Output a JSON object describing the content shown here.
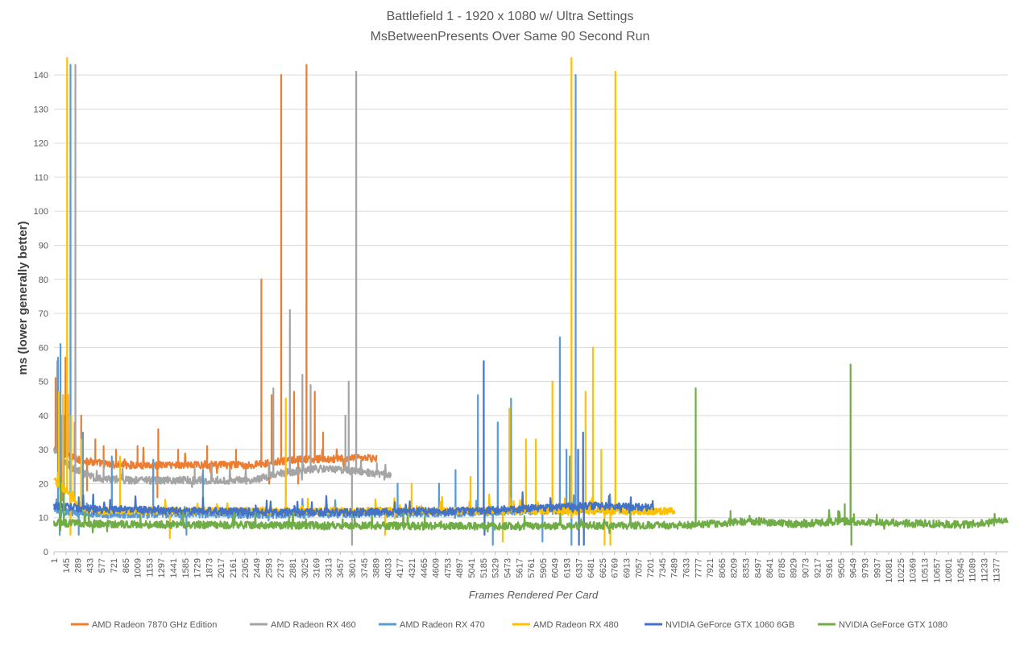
{
  "chart_data": {
    "type": "line",
    "title": "Battlefield 1 - 1920 x 1080 w/ Ultra Settings",
    "subtitle": "MsBetweenPresents Over Same 90 Second Run",
    "xlabel": "Frames Rendered Per Card",
    "ylabel": "ms (lower generally better)",
    "ylim": [
      0,
      145
    ],
    "xlim": [
      1,
      11520
    ],
    "yticks": [
      0,
      10,
      20,
      30,
      40,
      50,
      60,
      70,
      80,
      90,
      100,
      110,
      120,
      130,
      140
    ],
    "xticks": [
      1,
      145,
      289,
      433,
      577,
      721,
      865,
      1009,
      1153,
      1297,
      1441,
      1585,
      1729,
      1873,
      2017,
      2161,
      2305,
      2449,
      2593,
      2737,
      2881,
      3025,
      3169,
      3313,
      3457,
      3601,
      3745,
      3889,
      4033,
      4177,
      4321,
      4465,
      4609,
      4753,
      4897,
      5041,
      5185,
      5329,
      5473,
      5617,
      5761,
      5905,
      6049,
      6193,
      6337,
      6481,
      6625,
      6769,
      6913,
      7057,
      7201,
      7345,
      7489,
      7633,
      7777,
      7921,
      8065,
      8209,
      8353,
      8497,
      8641,
      8785,
      8929,
      9073,
      9217,
      9361,
      9505,
      9649,
      9793,
      9937,
      10081,
      10225,
      10369,
      10513,
      10657,
      10801,
      10945,
      11089,
      11233,
      11377
    ],
    "grid": "horizontal",
    "legend": "bottom",
    "series": [
      {
        "name": "AMD Radeon 7870 GHz Edition",
        "color": "#ED7D31",
        "count": 3900,
        "baseline": [
          [
            1,
            30
          ],
          [
            300,
            27
          ],
          [
            700,
            25.5
          ],
          [
            2400,
            25.5
          ],
          [
            2900,
            27
          ],
          [
            3900,
            27.5
          ]
        ],
        "spikes": [
          [
            20,
            51
          ],
          [
            60,
            45
          ],
          [
            140,
            57
          ],
          [
            170,
            46
          ],
          [
            250,
            38
          ],
          [
            330,
            40
          ],
          [
            500,
            33
          ],
          [
            600,
            31
          ],
          [
            750,
            30
          ],
          [
            1010,
            31
          ],
          [
            1260,
            36
          ],
          [
            1500,
            30
          ],
          [
            1850,
            31
          ],
          [
            2200,
            30
          ],
          [
            2505,
            80
          ],
          [
            2630,
            46
          ],
          [
            2745,
            140
          ],
          [
            2900,
            47
          ],
          [
            3050,
            143
          ],
          [
            3150,
            47
          ],
          [
            3250,
            35
          ]
        ],
        "dips": [
          [
            100,
            15
          ],
          [
            400,
            18
          ],
          [
            1250,
            16
          ],
          [
            2600,
            20
          ],
          [
            2950,
            20
          ]
        ]
      },
      {
        "name": "AMD Radeon RX 460",
        "color": "#A5A5A5",
        "count": 4080,
        "baseline": [
          [
            1,
            30
          ],
          [
            200,
            25
          ],
          [
            500,
            21.5
          ],
          [
            1000,
            21
          ],
          [
            2400,
            21
          ],
          [
            2700,
            23
          ],
          [
            3300,
            24.5
          ],
          [
            4080,
            22.5
          ]
        ],
        "spikes": [
          [
            40,
            56
          ],
          [
            100,
            40
          ],
          [
            260,
            143
          ],
          [
            600,
            27
          ],
          [
            1200,
            26
          ],
          [
            1700,
            25
          ],
          [
            2650,
            48
          ],
          [
            2850,
            71
          ],
          [
            3000,
            52
          ],
          [
            3100,
            49
          ],
          [
            3520,
            40
          ],
          [
            3560,
            50
          ],
          [
            3650,
            141
          ],
          [
            3900,
            26
          ]
        ],
        "dips": [
          [
            250,
            15
          ],
          [
            2800,
            16
          ],
          [
            3600,
            2
          ]
        ]
      },
      {
        "name": "AMD Radeon RX 470",
        "color": "#5B9BD5",
        "count": 6850,
        "baseline": [
          [
            1,
            12
          ],
          [
            600,
            11
          ],
          [
            3000,
            11
          ],
          [
            5000,
            11.5
          ],
          [
            6500,
            12.5
          ],
          [
            6850,
            13
          ]
        ],
        "spikes": [
          [
            50,
            57
          ],
          [
            80,
            61
          ],
          [
            120,
            40
          ],
          [
            200,
            143
          ],
          [
            350,
            35
          ],
          [
            700,
            28
          ],
          [
            1200,
            27
          ],
          [
            1800,
            24
          ],
          [
            4150,
            20
          ],
          [
            4650,
            20
          ],
          [
            4850,
            24
          ],
          [
            5120,
            46
          ],
          [
            5360,
            38
          ],
          [
            5520,
            45
          ],
          [
            6110,
            63
          ],
          [
            6190,
            30
          ],
          [
            6230,
            28
          ],
          [
            6300,
            140
          ]
        ],
        "dips": [
          [
            70,
            5
          ],
          [
            300,
            5
          ],
          [
            1600,
            5
          ],
          [
            5300,
            2
          ],
          [
            5900,
            3
          ],
          [
            6250,
            2
          ]
        ]
      },
      {
        "name": "AMD Radeon RX 480",
        "color": "#FFC000",
        "count": 7500,
        "baseline": [
          [
            1,
            21
          ],
          [
            400,
            12
          ],
          [
            2000,
            12
          ],
          [
            5000,
            12
          ],
          [
            6500,
            12
          ],
          [
            7500,
            12
          ]
        ],
        "spikes": [
          [
            60,
            47
          ],
          [
            110,
            46
          ],
          [
            160,
            145
          ],
          [
            210,
            40
          ],
          [
            330,
            33
          ],
          [
            800,
            28
          ],
          [
            2800,
            45
          ],
          [
            4320,
            20
          ],
          [
            5030,
            22
          ],
          [
            5500,
            42
          ],
          [
            5700,
            33
          ],
          [
            5820,
            33
          ],
          [
            6020,
            50
          ],
          [
            6250,
            145
          ],
          [
            6420,
            47
          ],
          [
            6510,
            60
          ],
          [
            6610,
            30
          ],
          [
            6780,
            141
          ]
        ],
        "dips": [
          [
            200,
            5
          ],
          [
            1400,
            4
          ],
          [
            4000,
            5
          ],
          [
            5420,
            3
          ],
          [
            6650,
            2
          ],
          [
            6720,
            2
          ]
        ]
      },
      {
        "name": "NVIDIA GeForce GTX 1060 6GB",
        "color": "#4472C4",
        "count": 7240,
        "baseline": [
          [
            1,
            13.5
          ],
          [
            500,
            12.5
          ],
          [
            3000,
            11.5
          ],
          [
            5000,
            12
          ],
          [
            6500,
            13.5
          ],
          [
            7240,
            13
          ]
        ],
        "spikes": [
          [
            300,
            16
          ],
          [
            5190,
            56
          ],
          [
            6330,
            30
          ],
          [
            6390,
            35
          ]
        ],
        "dips": [
          [
            5200,
            5
          ],
          [
            6340,
            2
          ],
          [
            6400,
            2
          ]
        ]
      },
      {
        "name": "NVIDIA GeForce GTX 1080",
        "color": "#70AD47",
        "count": 11520,
        "baseline": [
          [
            1,
            8.5
          ],
          [
            1000,
            8
          ],
          [
            5000,
            7.5
          ],
          [
            7700,
            7.8
          ],
          [
            8100,
            8.5
          ],
          [
            8500,
            9
          ],
          [
            9000,
            8
          ],
          [
            9500,
            9
          ],
          [
            10000,
            8.5
          ],
          [
            11000,
            8
          ],
          [
            11520,
            9
          ]
        ],
        "spikes": [
          [
            80,
            22
          ],
          [
            120,
            17
          ],
          [
            7750,
            48
          ],
          [
            8170,
            12
          ],
          [
            9620,
            55
          ],
          [
            9470,
            12
          ],
          [
            9550,
            14
          ]
        ],
        "dips": [
          [
            9630,
            2
          ]
        ]
      }
    ]
  }
}
